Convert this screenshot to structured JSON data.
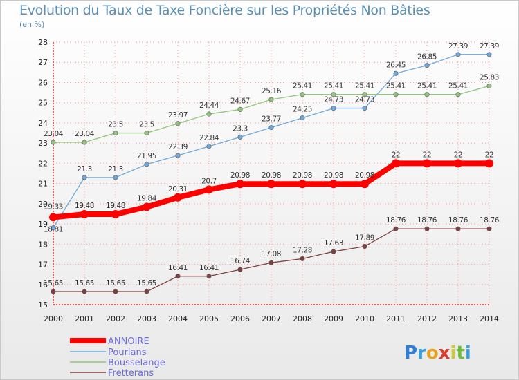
{
  "chart_data": {
    "type": "line",
    "title": "Evolution du Taux de Taxe Foncière sur les Propriétés Non Bâties",
    "subtitle": "(en %)",
    "x": [
      "2000",
      "2001",
      "2002",
      "2003",
      "2004",
      "2005",
      "2006",
      "2007",
      "2008",
      "2009",
      "2010",
      "2011",
      "2012",
      "2013",
      "2014"
    ],
    "ylim": [
      15,
      28
    ],
    "yticks": [
      "15",
      "16",
      "17",
      "18",
      "19",
      "20",
      "21",
      "22",
      "23",
      "24",
      "25",
      "26",
      "27",
      "28"
    ],
    "grid": true,
    "legend_position": "bottom-left",
    "series": [
      {
        "name": "ANNOIRE",
        "color": "#ff0000",
        "values": [
          19.33,
          19.48,
          19.48,
          19.84,
          20.31,
          20.7,
          20.98,
          20.98,
          20.98,
          20.98,
          20.98,
          22,
          22,
          22,
          22
        ],
        "labels": [
          "19.33",
          "19.48",
          "19.48",
          "19.84",
          "20.31",
          "20.7",
          "20.98",
          "20.98",
          "20.98",
          "20.98",
          "20.98",
          "22",
          "22",
          "22",
          "22"
        ]
      },
      {
        "name": "Pourlans",
        "color": "#6fa8dc",
        "values": [
          18.81,
          21.3,
          21.3,
          21.95,
          22.39,
          22.84,
          23.3,
          23.77,
          24.25,
          24.73,
          24.73,
          26.45,
          26.85,
          27.39,
          27.39
        ],
        "labels": [
          "18.81",
          "21.3",
          "21.3",
          "21.95",
          "22.39",
          "22.84",
          "23.3",
          "23.77",
          "24.25",
          "24.73",
          "24.73",
          "26.45",
          "26.85",
          "27.39",
          "27.39"
        ]
      },
      {
        "name": "Bousselange",
        "color": "#93c47d",
        "values": [
          23.04,
          23.04,
          23.5,
          23.5,
          23.97,
          24.44,
          24.67,
          25.16,
          25.41,
          25.41,
          25.41,
          25.41,
          25.41,
          25.41,
          25.83
        ],
        "labels": [
          "23.04",
          "23.04",
          "23.5",
          "23.5",
          "23.97",
          "24.44",
          "24.67",
          "25.16",
          "25.41",
          "25.41",
          "25.41",
          "25.41",
          "25.41",
          "25.41",
          "25.83"
        ]
      },
      {
        "name": "Fretterans",
        "color": "#7f3f3f",
        "values": [
          15.65,
          15.65,
          15.65,
          15.65,
          16.41,
          16.41,
          16.74,
          17.08,
          17.28,
          17.63,
          17.89,
          18.76,
          18.76,
          18.76,
          18.76
        ],
        "labels": [
          "15.65",
          "15.65",
          "15.65",
          "15.65",
          "16.41",
          "16.41",
          "16.74",
          "17.08",
          "17.28",
          "17.63",
          "17.89",
          "18.76",
          "18.76",
          "18.76",
          "18.76"
        ]
      }
    ]
  },
  "logo": {
    "text": "Proxiti"
  }
}
